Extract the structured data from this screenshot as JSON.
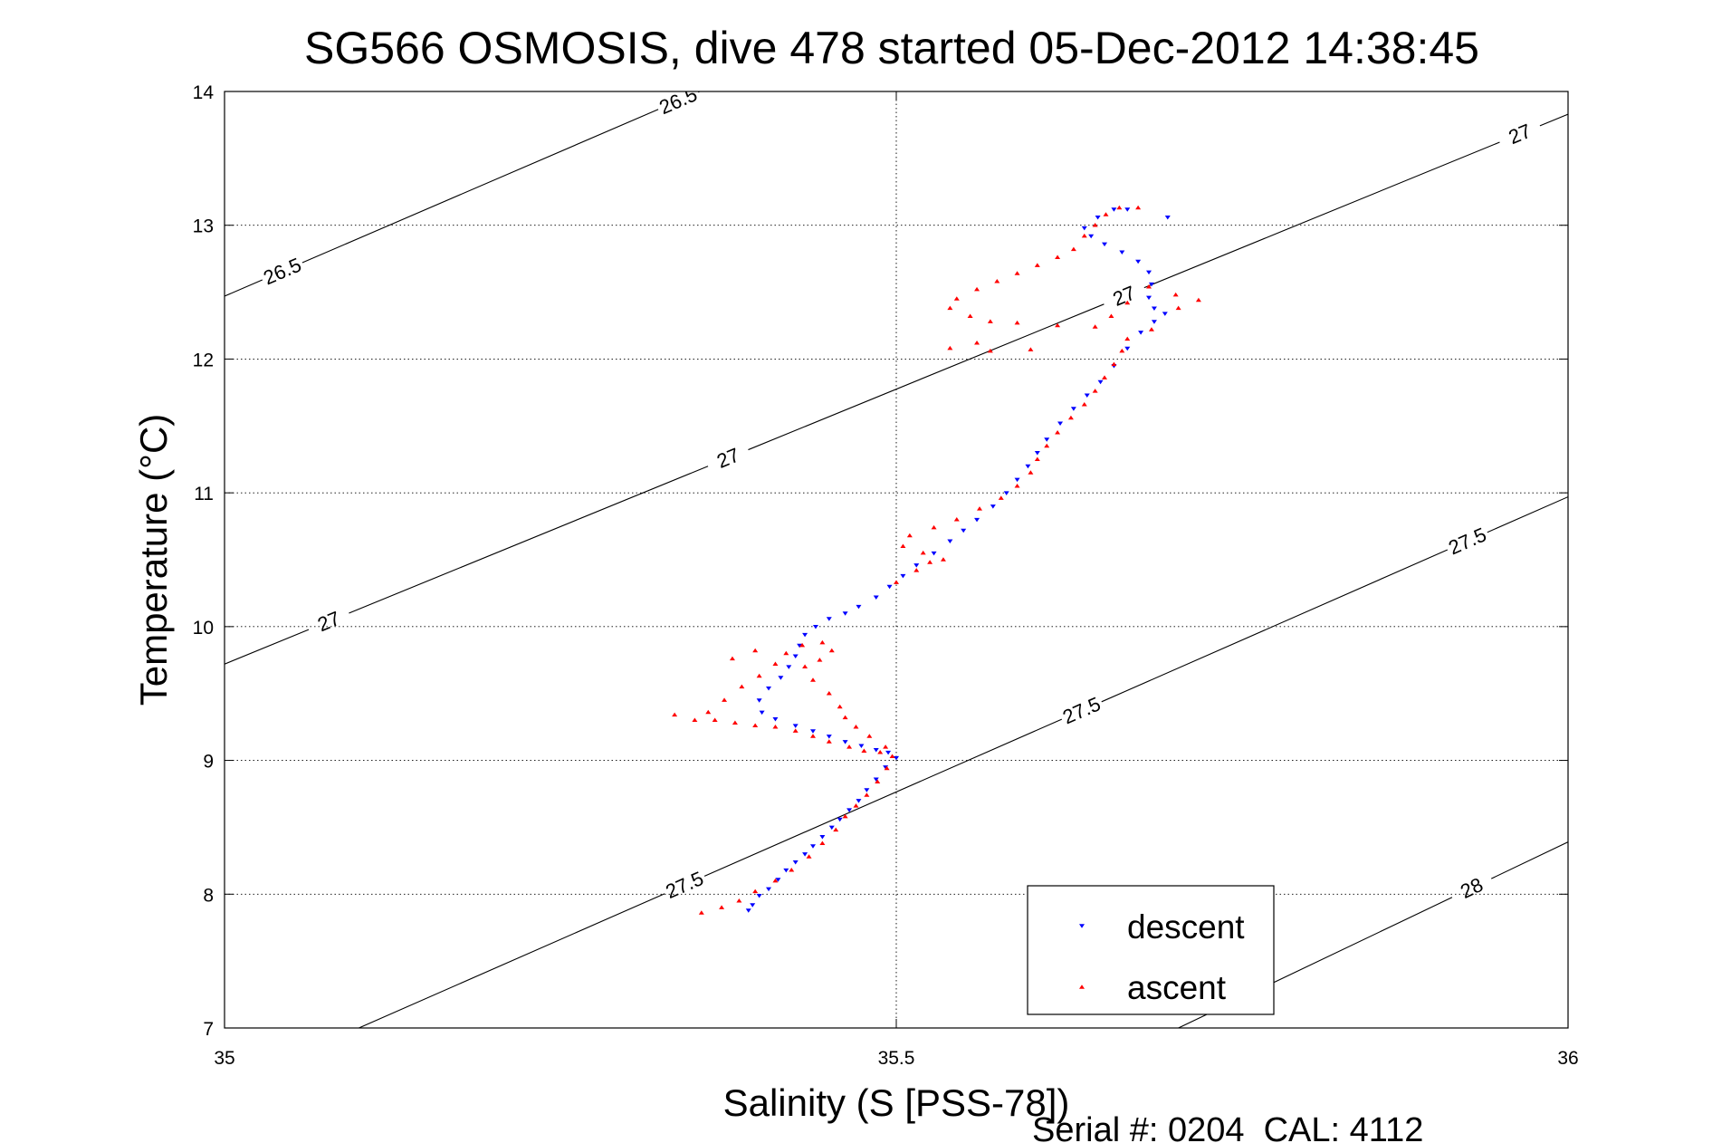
{
  "chart_data": {
    "type": "scatter",
    "title": "SG566 OSMOSIS, dive 478 started 05-Dec-2012 14:38:45",
    "xlabel": "Salinity (S [PSS-78])",
    "ylabel": "Temperature (°C)",
    "xlim": [
      35,
      36
    ],
    "ylim": [
      7,
      14
    ],
    "xticks": [
      "35",
      "35.5",
      "36"
    ],
    "yticks": [
      "7",
      "8",
      "9",
      "10",
      "11",
      "12",
      "13",
      "14"
    ],
    "grid": true,
    "legend_position": "bottom-right",
    "contours": [
      {
        "label": "26.5",
        "points": [
          [
            35.0,
            12.47
          ],
          [
            35.4,
            14.2
          ]
        ],
        "labels_at": [
          [
            35.045,
            12.61
          ],
          [
            35.345,
            13.76
          ]
        ]
      },
      {
        "label": "27",
        "points": [
          [
            35.0,
            9.72
          ],
          [
            36.0,
            13.83
          ]
        ],
        "labels_at": [
          [
            35.078,
            10.03
          ],
          [
            35.372,
            11.33
          ],
          [
            35.668,
            12.51
          ],
          [
            35.965,
            13.66
          ]
        ]
      },
      {
        "label": "27.5",
        "points": [
          [
            35.1,
            7.0
          ],
          [
            36.0,
            10.97
          ]
        ],
        "labels_at": [
          [
            35.338,
            8.17
          ],
          [
            35.632,
            9.51
          ],
          [
            35.915,
            10.87
          ]
        ]
      },
      {
        "label": "28",
        "points": [
          [
            35.71,
            7.0
          ],
          [
            36.0,
            8.39
          ]
        ],
        "labels_at": [
          [
            35.93,
            8.01
          ]
        ]
      }
    ],
    "series": [
      {
        "name": "descent",
        "color": "#0000ff",
        "marker": "triangle-down",
        "points": [
          [
            35.39,
            7.88
          ],
          [
            35.393,
            7.92
          ],
          [
            35.398,
            7.99
          ],
          [
            35.405,
            8.04
          ],
          [
            35.412,
            8.11
          ],
          [
            35.418,
            8.18
          ],
          [
            35.425,
            8.24
          ],
          [
            35.432,
            8.3
          ],
          [
            35.438,
            8.36
          ],
          [
            35.445,
            8.43
          ],
          [
            35.452,
            8.5
          ],
          [
            35.458,
            8.56
          ],
          [
            35.465,
            8.63
          ],
          [
            35.472,
            8.7
          ],
          [
            35.478,
            8.78
          ],
          [
            35.485,
            8.86
          ],
          [
            35.492,
            8.95
          ],
          [
            35.5,
            9.02
          ],
          [
            35.494,
            9.06
          ],
          [
            35.485,
            9.08
          ],
          [
            35.474,
            9.11
          ],
          [
            35.462,
            9.14
          ],
          [
            35.45,
            9.18
          ],
          [
            35.438,
            9.22
          ],
          [
            35.425,
            9.26
          ],
          [
            35.41,
            9.31
          ],
          [
            35.4,
            9.36
          ],
          [
            35.398,
            9.45
          ],
          [
            35.405,
            9.54
          ],
          [
            35.414,
            9.62
          ],
          [
            35.42,
            9.7
          ],
          [
            35.425,
            9.78
          ],
          [
            35.428,
            9.86
          ],
          [
            35.432,
            9.94
          ],
          [
            35.44,
            10.0
          ],
          [
            35.45,
            10.06
          ],
          [
            35.462,
            10.1
          ],
          [
            35.472,
            10.15
          ],
          [
            35.485,
            10.22
          ],
          [
            35.495,
            10.3
          ],
          [
            35.505,
            10.38
          ],
          [
            35.515,
            10.46
          ],
          [
            35.528,
            10.55
          ],
          [
            35.54,
            10.64
          ],
          [
            35.55,
            10.72
          ],
          [
            35.56,
            10.8
          ],
          [
            35.572,
            10.9
          ],
          [
            35.582,
            11.0
          ],
          [
            35.59,
            11.1
          ],
          [
            35.598,
            11.2
          ],
          [
            35.605,
            11.3
          ],
          [
            35.612,
            11.4
          ],
          [
            35.622,
            11.52
          ],
          [
            35.632,
            11.63
          ],
          [
            35.642,
            11.73
          ],
          [
            35.652,
            11.83
          ],
          [
            35.662,
            11.95
          ],
          [
            35.672,
            12.08
          ],
          [
            35.682,
            12.2
          ],
          [
            35.692,
            12.28
          ],
          [
            35.7,
            12.34
          ],
          [
            35.692,
            12.38
          ],
          [
            35.688,
            12.46
          ],
          [
            35.69,
            12.56
          ],
          [
            35.688,
            12.65
          ],
          [
            35.68,
            12.73
          ],
          [
            35.668,
            12.8
          ],
          [
            35.655,
            12.86
          ],
          [
            35.645,
            12.92
          ],
          [
            35.64,
            12.98
          ],
          [
            35.65,
            13.06
          ],
          [
            35.662,
            13.12
          ],
          [
            35.672,
            13.12
          ],
          [
            35.702,
            13.06
          ]
        ]
      },
      {
        "name": "ascent",
        "color": "#ff0000",
        "marker": "triangle-up",
        "points": [
          [
            35.355,
            7.86
          ],
          [
            35.37,
            7.9
          ],
          [
            35.383,
            7.95
          ],
          [
            35.395,
            8.02
          ],
          [
            35.41,
            8.1
          ],
          [
            35.422,
            8.18
          ],
          [
            35.435,
            8.28
          ],
          [
            35.445,
            8.38
          ],
          [
            35.455,
            8.48
          ],
          [
            35.462,
            8.58
          ],
          [
            35.47,
            8.66
          ],
          [
            35.478,
            8.74
          ],
          [
            35.486,
            8.84
          ],
          [
            35.493,
            8.94
          ],
          [
            35.497,
            9.03
          ],
          [
            35.488,
            9.06
          ],
          [
            35.476,
            9.07
          ],
          [
            35.465,
            9.1
          ],
          [
            35.45,
            9.14
          ],
          [
            35.438,
            9.18
          ],
          [
            35.425,
            9.22
          ],
          [
            35.41,
            9.25
          ],
          [
            35.395,
            9.26
          ],
          [
            35.38,
            9.28
          ],
          [
            35.365,
            9.3
          ],
          [
            35.36,
            9.36
          ],
          [
            35.372,
            9.45
          ],
          [
            35.385,
            9.55
          ],
          [
            35.398,
            9.63
          ],
          [
            35.41,
            9.72
          ],
          [
            35.418,
            9.8
          ],
          [
            35.43,
            9.86
          ],
          [
            35.445,
            9.88
          ],
          [
            35.452,
            9.82
          ],
          [
            35.443,
            9.75
          ],
          [
            35.432,
            9.7
          ],
          [
            35.438,
            9.6
          ],
          [
            35.45,
            9.5
          ],
          [
            35.458,
            9.4
          ],
          [
            35.462,
            9.32
          ],
          [
            35.47,
            9.25
          ],
          [
            35.48,
            9.18
          ],
          [
            35.492,
            9.1
          ],
          [
            35.5,
            10.33
          ],
          [
            35.515,
            10.42
          ],
          [
            35.525,
            10.48
          ],
          [
            35.535,
            10.5
          ],
          [
            35.52,
            10.55
          ],
          [
            35.505,
            10.6
          ],
          [
            35.51,
            10.68
          ],
          [
            35.528,
            10.74
          ],
          [
            35.545,
            10.8
          ],
          [
            35.562,
            10.88
          ],
          [
            35.578,
            10.96
          ],
          [
            35.59,
            11.05
          ],
          [
            35.6,
            11.15
          ],
          [
            35.605,
            11.25
          ],
          [
            35.612,
            11.35
          ],
          [
            35.62,
            11.45
          ],
          [
            35.63,
            11.56
          ],
          [
            35.64,
            11.66
          ],
          [
            35.648,
            11.76
          ],
          [
            35.655,
            11.86
          ],
          [
            35.662,
            11.96
          ],
          [
            35.668,
            12.06
          ],
          [
            35.672,
            12.15
          ],
          [
            35.69,
            12.22
          ],
          [
            35.71,
            12.38
          ],
          [
            35.725,
            12.44
          ],
          [
            35.708,
            12.48
          ],
          [
            35.688,
            12.54
          ],
          [
            35.672,
            12.42
          ],
          [
            35.66,
            12.32
          ],
          [
            35.648,
            12.24
          ],
          [
            35.62,
            12.25
          ],
          [
            35.59,
            12.27
          ],
          [
            35.57,
            12.28
          ],
          [
            35.555,
            12.32
          ],
          [
            35.54,
            12.38
          ],
          [
            35.545,
            12.45
          ],
          [
            35.56,
            12.52
          ],
          [
            35.575,
            12.58
          ],
          [
            35.59,
            12.64
          ],
          [
            35.605,
            12.7
          ],
          [
            35.62,
            12.76
          ],
          [
            35.632,
            12.82
          ],
          [
            35.64,
            12.92
          ],
          [
            35.648,
            13.0
          ],
          [
            35.656,
            13.08
          ],
          [
            35.666,
            13.13
          ],
          [
            35.68,
            13.13
          ],
          [
            35.54,
            12.08
          ],
          [
            35.57,
            12.06
          ],
          [
            35.6,
            12.07
          ],
          [
            35.56,
            12.12
          ],
          [
            35.335,
            9.34
          ],
          [
            35.35,
            9.3
          ],
          [
            35.378,
            9.76
          ],
          [
            35.395,
            9.82
          ]
        ]
      }
    ]
  },
  "legend": {
    "entries": [
      {
        "label": "descent",
        "color": "#0000ff",
        "marker": "triangle-down"
      },
      {
        "label": "ascent",
        "color": "#ff0000",
        "marker": "triangle-up"
      }
    ]
  },
  "footer": {
    "serial_text": "Serial #: 0204  CAL: 4112"
  }
}
